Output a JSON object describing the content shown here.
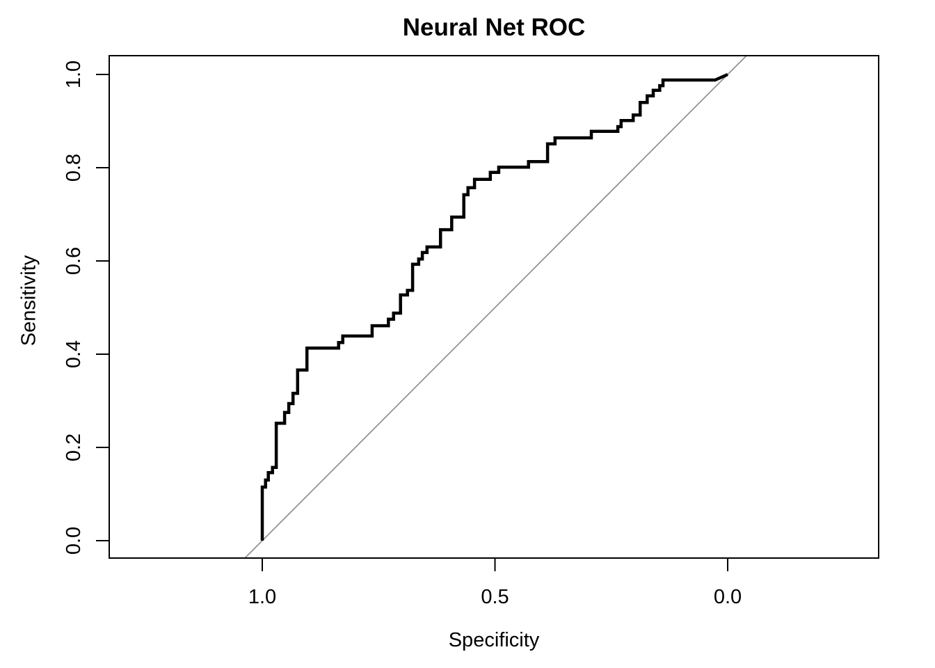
{
  "page_title": "Neural Net ROC",
  "chart_data": {
    "type": "line",
    "subtype": "roc-step-curve",
    "title": "Neural Net ROC",
    "xlabel": "Specificity",
    "ylabel": "Sensitivity",
    "x_axis_reversed": true,
    "x_range": [
      1.0,
      0.0
    ],
    "y_range": [
      0.0,
      1.0
    ],
    "grid": false,
    "legend": false,
    "x_ticks": [
      {
        "value": 1.0,
        "label": "1.0"
      },
      {
        "value": 0.5,
        "label": "0.5"
      },
      {
        "value": 0.0,
        "label": "0.0"
      }
    ],
    "y_ticks": [
      {
        "value": 0.0,
        "label": "0.0"
      },
      {
        "value": 0.2,
        "label": "0.2"
      },
      {
        "value": 0.4,
        "label": "0.4"
      },
      {
        "value": 0.6,
        "label": "0.6"
      },
      {
        "value": 0.8,
        "label": "0.8"
      },
      {
        "value": 1.0,
        "label": "1.0"
      }
    ],
    "colors": {
      "curve": "#000000",
      "reference": "#8e8e8e",
      "box": "#000000",
      "text": "#000000",
      "background": "#ffffff"
    },
    "reference_line": {
      "description": "chance diagonal from (specificity 1, sensitivity 0) to (specificity 0, sensitivity 1)",
      "from": {
        "specificity": 1.0,
        "sensitivity": 0.0
      },
      "to": {
        "specificity": 0.0,
        "sensitivity": 1.0
      },
      "color": "#8e8e8e",
      "style": "solid"
    },
    "series": [
      {
        "name": "Neural Net ROC curve",
        "draw": "polyline-through-points",
        "color": "#000000",
        "points": [
          [
            1.0,
            0.0
          ],
          [
            1.0,
            0.115
          ],
          [
            0.993,
            0.115
          ],
          [
            0.993,
            0.13
          ],
          [
            0.987,
            0.13
          ],
          [
            0.987,
            0.146
          ],
          [
            0.978,
            0.146
          ],
          [
            0.978,
            0.157
          ],
          [
            0.97,
            0.157
          ],
          [
            0.97,
            0.252
          ],
          [
            0.952,
            0.252
          ],
          [
            0.952,
            0.275
          ],
          [
            0.943,
            0.275
          ],
          [
            0.943,
            0.294
          ],
          [
            0.934,
            0.294
          ],
          [
            0.934,
            0.316
          ],
          [
            0.924,
            0.316
          ],
          [
            0.924,
            0.366
          ],
          [
            0.904,
            0.366
          ],
          [
            0.904,
            0.413
          ],
          [
            0.836,
            0.413
          ],
          [
            0.836,
            0.425
          ],
          [
            0.827,
            0.425
          ],
          [
            0.827,
            0.439
          ],
          [
            0.764,
            0.439
          ],
          [
            0.764,
            0.461
          ],
          [
            0.729,
            0.461
          ],
          [
            0.729,
            0.475
          ],
          [
            0.718,
            0.475
          ],
          [
            0.718,
            0.488
          ],
          [
            0.703,
            0.488
          ],
          [
            0.703,
            0.527
          ],
          [
            0.688,
            0.527
          ],
          [
            0.688,
            0.537
          ],
          [
            0.677,
            0.537
          ],
          [
            0.677,
            0.593
          ],
          [
            0.664,
            0.593
          ],
          [
            0.664,
            0.604
          ],
          [
            0.656,
            0.604
          ],
          [
            0.656,
            0.618
          ],
          [
            0.646,
            0.618
          ],
          [
            0.646,
            0.63
          ],
          [
            0.617,
            0.63
          ],
          [
            0.617,
            0.667
          ],
          [
            0.593,
            0.667
          ],
          [
            0.593,
            0.694
          ],
          [
            0.567,
            0.694
          ],
          [
            0.567,
            0.742
          ],
          [
            0.558,
            0.742
          ],
          [
            0.558,
            0.757
          ],
          [
            0.544,
            0.757
          ],
          [
            0.544,
            0.775
          ],
          [
            0.51,
            0.775
          ],
          [
            0.51,
            0.79
          ],
          [
            0.492,
            0.79
          ],
          [
            0.492,
            0.801
          ],
          [
            0.428,
            0.801
          ],
          [
            0.428,
            0.813
          ],
          [
            0.387,
            0.813
          ],
          [
            0.387,
            0.851
          ],
          [
            0.371,
            0.851
          ],
          [
            0.371,
            0.864
          ],
          [
            0.293,
            0.864
          ],
          [
            0.293,
            0.878
          ],
          [
            0.236,
            0.878
          ],
          [
            0.236,
            0.888
          ],
          [
            0.229,
            0.888
          ],
          [
            0.229,
            0.901
          ],
          [
            0.203,
            0.901
          ],
          [
            0.203,
            0.913
          ],
          [
            0.188,
            0.913
          ],
          [
            0.188,
            0.94
          ],
          [
            0.173,
            0.94
          ],
          [
            0.173,
            0.954
          ],
          [
            0.16,
            0.954
          ],
          [
            0.16,
            0.966
          ],
          [
            0.146,
            0.966
          ],
          [
            0.146,
            0.976
          ],
          [
            0.139,
            0.976
          ],
          [
            0.139,
            0.988
          ],
          [
            0.027,
            0.988
          ],
          [
            0.0,
            1.0
          ]
        ]
      }
    ]
  }
}
